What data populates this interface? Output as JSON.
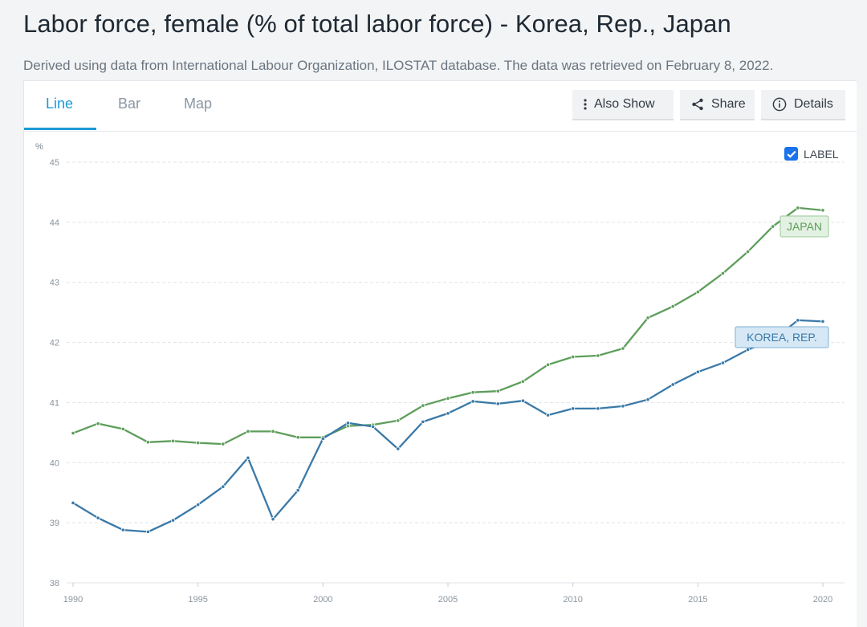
{
  "page": {
    "title": "Labor force, female (% of total labor force) - Korea, Rep., Japan",
    "source_note": "Derived using data from International Labour Organization, ILOSTAT database. The data was retrieved on February 8, 2022."
  },
  "tabs": [
    {
      "label": "Line",
      "active": true
    },
    {
      "label": "Bar",
      "active": false
    },
    {
      "label": "Map",
      "active": false
    }
  ],
  "toolbar": {
    "also_show_label": "Also Show",
    "share_label": "Share",
    "details_label": "Details"
  },
  "label_toggle": {
    "label": "LABEL",
    "checked": true
  },
  "colors": {
    "japan": "#5e9e5b",
    "korea": "#3a79a8",
    "accent": "#1a9ad6"
  },
  "chart_data": {
    "type": "line",
    "ylabel": "%",
    "ylim": [
      38,
      45
    ],
    "xlim": [
      1990,
      2020
    ],
    "yticks": [
      38,
      39,
      40,
      41,
      42,
      43,
      44,
      45
    ],
    "xticks": [
      1990,
      1995,
      2000,
      2005,
      2010,
      2015,
      2020
    ],
    "grid": true,
    "x": [
      1990,
      1991,
      1992,
      1993,
      1994,
      1995,
      1996,
      1997,
      1998,
      1999,
      2000,
      2001,
      2002,
      2003,
      2004,
      2005,
      2006,
      2007,
      2008,
      2009,
      2010,
      2011,
      2012,
      2013,
      2014,
      2015,
      2016,
      2017,
      2018,
      2019,
      2020
    ],
    "series": [
      {
        "name": "JAPAN",
        "color": "#5e9e5b",
        "values": [
          40.49,
          40.65,
          40.56,
          40.34,
          40.36,
          40.33,
          40.31,
          40.52,
          40.52,
          40.42,
          40.42,
          40.61,
          40.63,
          40.7,
          40.95,
          41.07,
          41.17,
          41.19,
          41.35,
          41.63,
          41.76,
          41.78,
          41.9,
          42.41,
          42.6,
          42.84,
          43.15,
          43.51,
          43.93,
          44.24,
          44.2
        ]
      },
      {
        "name": "KOREA, REP.",
        "color": "#3a79a8",
        "values": [
          39.33,
          39.08,
          38.88,
          38.85,
          39.04,
          39.3,
          39.6,
          40.08,
          39.06,
          39.54,
          40.4,
          40.66,
          40.6,
          40.23,
          40.68,
          40.82,
          41.02,
          40.98,
          41.03,
          40.79,
          40.9,
          40.9,
          40.94,
          41.05,
          41.3,
          41.51,
          41.66,
          41.88,
          42.04,
          42.37,
          42.35
        ]
      }
    ]
  }
}
